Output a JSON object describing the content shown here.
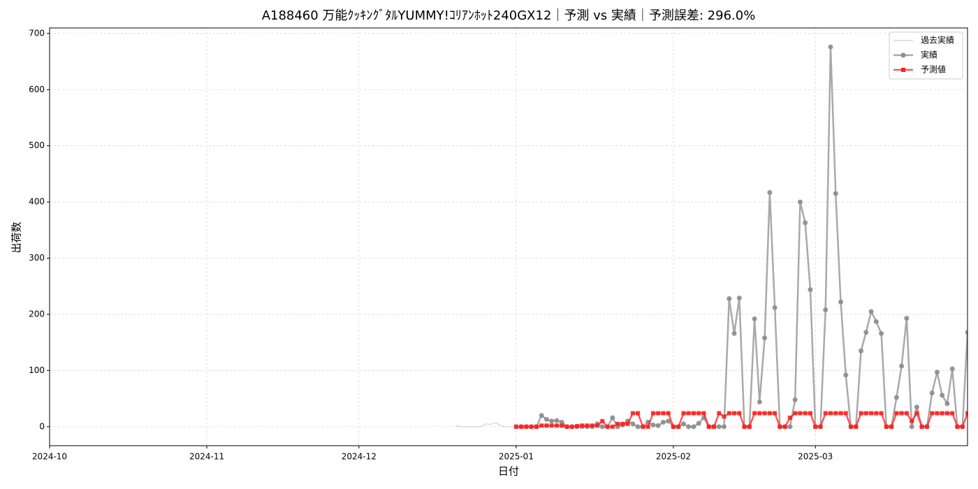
{
  "chart_data": {
    "type": "line",
    "title": "A188460 万能ｸｯｷﾝｸﾞﾀﾙYUMMY!ｺﾘｱﾝﾎｯﾄ240GX12｜予測 vs 実績｜予測誤差: 296.0%",
    "xlabel": "日付",
    "ylabel": "出荷数",
    "xlim": [
      0,
      181
    ],
    "xticks": [
      {
        "value": 0,
        "label": "2024-10"
      },
      {
        "value": 31,
        "label": "2024-11"
      },
      {
        "value": 61,
        "label": "2024-12"
      },
      {
        "value": 92,
        "label": "2025-01"
      },
      {
        "value": 123,
        "label": "2025-02"
      },
      {
        "value": 151,
        "label": "2025-03"
      }
    ],
    "ylim": [
      -33.8,
      709.8
    ],
    "yticks": [
      0,
      100,
      200,
      300,
      400,
      500,
      600,
      700
    ],
    "grid": true,
    "legend": "upper right",
    "series": [
      {
        "name": "過去実績",
        "color": "#cccccc",
        "marker": "none",
        "x": [
          80,
          81,
          82,
          83,
          84,
          85,
          86,
          87,
          88,
          89,
          90,
          91
        ],
        "values": [
          2,
          0,
          0,
          0,
          0,
          0,
          5,
          4,
          7,
          2,
          0,
          0
        ]
      },
      {
        "name": "実績",
        "color": "#8c8c8c",
        "marker": "circle",
        "x": [
          92,
          93,
          94,
          95,
          96,
          97,
          98,
          99,
          100,
          101,
          102,
          103,
          104,
          105,
          106,
          107,
          108,
          109,
          110,
          111,
          112,
          113,
          114,
          115,
          116,
          117,
          118,
          119,
          120,
          121,
          122,
          123,
          124,
          125,
          126,
          127,
          128,
          129,
          130,
          131,
          132,
          133,
          134,
          135,
          136,
          137,
          138,
          139,
          140,
          141,
          142,
          143,
          144,
          145,
          146,
          147,
          148,
          149,
          150,
          151,
          152,
          153,
          154,
          155,
          156,
          157,
          158,
          159,
          160,
          161,
          162,
          163,
          164,
          165,
          166,
          167,
          168,
          169,
          170,
          171,
          172,
          173,
          174,
          175,
          176,
          177,
          178,
          179,
          180,
          181
        ],
        "values": [
          0,
          0,
          0,
          0,
          0,
          20,
          13,
          10,
          11,
          8,
          0,
          0,
          0,
          0,
          0,
          0,
          5,
          0,
          0,
          16,
          0,
          3,
          10,
          5,
          0,
          0,
          8,
          3,
          2,
          8,
          10,
          0,
          0,
          5,
          0,
          0,
          6,
          16,
          0,
          0,
          0,
          0,
          228,
          166,
          229,
          0,
          0,
          192,
          44,
          158,
          417,
          212,
          0,
          0,
          0,
          48,
          400,
          363,
          244,
          0,
          0,
          208,
          676,
          415,
          222,
          92,
          0,
          0,
          135,
          168,
          205,
          187,
          166,
          0,
          0,
          52,
          108,
          193,
          0,
          35,
          0,
          0,
          60,
          97,
          56,
          41,
          103,
          0,
          0,
          168
        ]
      },
      {
        "name": "予測値",
        "color": "#ff2020",
        "marker": "square",
        "x": [
          92,
          93,
          94,
          95,
          96,
          97,
          98,
          99,
          100,
          101,
          102,
          103,
          104,
          105,
          106,
          107,
          108,
          109,
          110,
          111,
          112,
          113,
          114,
          115,
          116,
          117,
          118,
          119,
          120,
          121,
          122,
          123,
          124,
          125,
          126,
          127,
          128,
          129,
          130,
          131,
          132,
          133,
          134,
          135,
          136,
          137,
          138,
          139,
          140,
          141,
          142,
          143,
          144,
          145,
          146,
          147,
          148,
          149,
          150,
          151,
          152,
          153,
          154,
          155,
          156,
          157,
          158,
          159,
          160,
          161,
          162,
          163,
          164,
          165,
          166,
          167,
          168,
          169,
          170,
          171,
          172,
          173,
          174,
          175,
          176,
          177,
          178,
          179,
          180,
          181
        ],
        "values": [
          0,
          0,
          0,
          0,
          0,
          2,
          2,
          2,
          2,
          2,
          0,
          0,
          1,
          2,
          2,
          2,
          2,
          10,
          0,
          0,
          5,
          5,
          5,
          24,
          24,
          0,
          0,
          24,
          24,
          24,
          24,
          0,
          0,
          24,
          24,
          24,
          24,
          24,
          0,
          0,
          24,
          18,
          24,
          24,
          24,
          0,
          0,
          24,
          24,
          24,
          24,
          24,
          0,
          0,
          16,
          24,
          24,
          24,
          24,
          0,
          0,
          24,
          24,
          24,
          24,
          24,
          0,
          0,
          24,
          24,
          24,
          24,
          24,
          0,
          0,
          24,
          24,
          24,
          10,
          24,
          0,
          0,
          24,
          24,
          24,
          24,
          24,
          0,
          0,
          24
        ]
      }
    ]
  }
}
